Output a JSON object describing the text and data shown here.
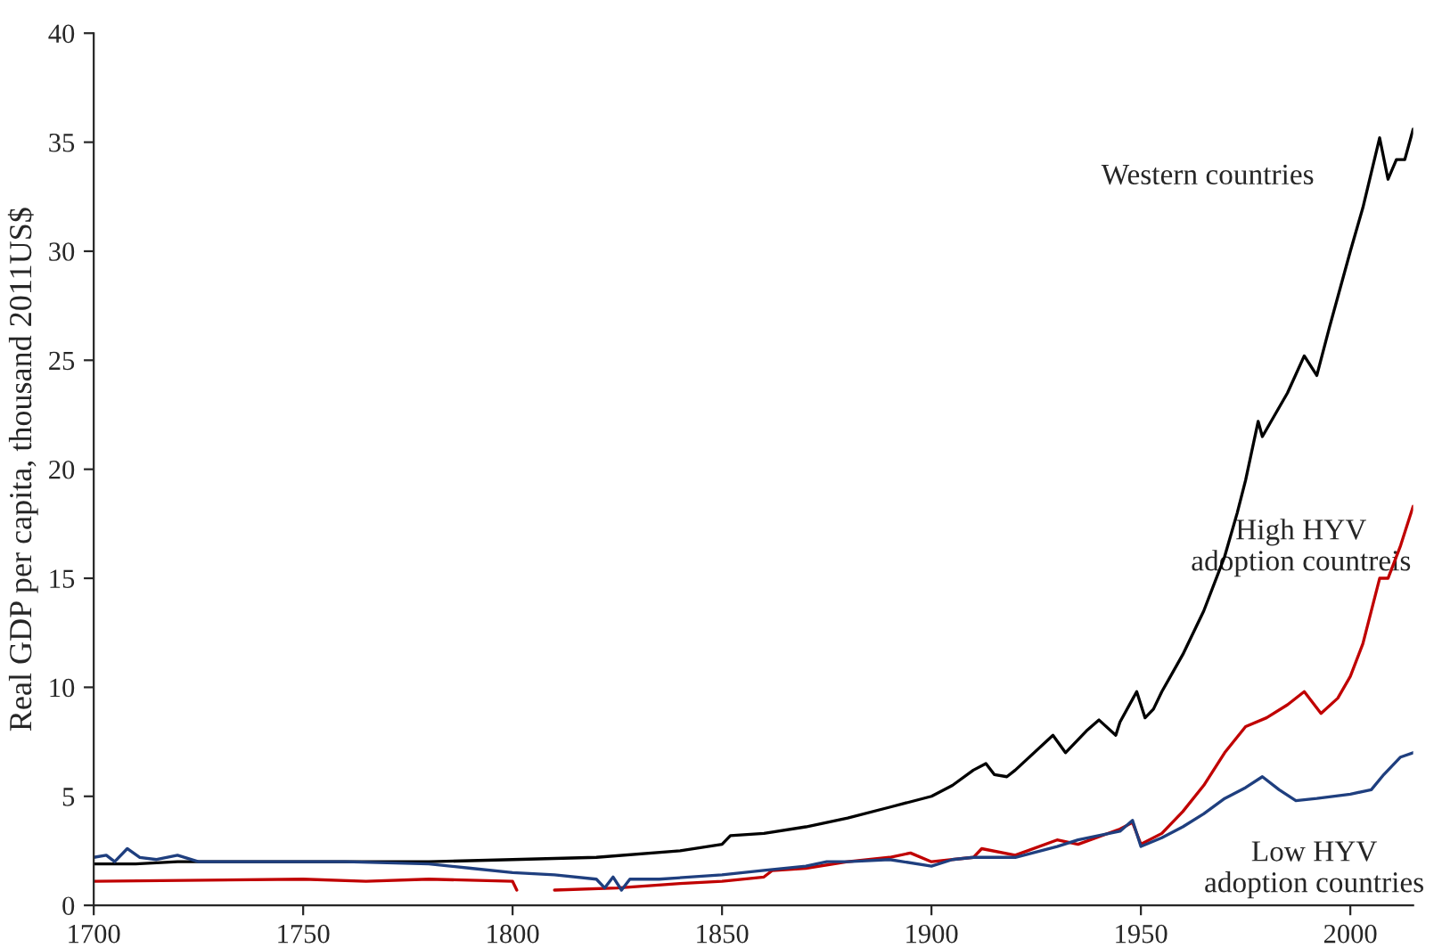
{
  "chart_data": {
    "type": "line",
    "ylabel": "Real GDP per capita, thousand 2011US$",
    "xlim": [
      1700,
      2015
    ],
    "xticks": [
      1700,
      1750,
      1800,
      1850,
      1900,
      1950,
      2000
    ],
    "ylim": [
      0,
      40
    ],
    "yticks": [
      0,
      5,
      10,
      15,
      20,
      25,
      30,
      35,
      40
    ],
    "grid": false,
    "legend": false,
    "marker": "none",
    "line_style": "solid",
    "series": [
      {
        "color": "#000000",
        "x": [
          1700,
          1710,
          1720,
          1750,
          1780,
          1800,
          1820,
          1840,
          1850,
          1852,
          1860,
          1870,
          1880,
          1890,
          1900,
          1905,
          1910,
          1913,
          1915,
          1918,
          1920,
          1929,
          1932,
          1937,
          1940,
          1944,
          1945,
          1949,
          1951,
          1953,
          1955,
          1960,
          1965,
          1970,
          1973,
          1975,
          1978,
          1979,
          1982,
          1985,
          1989,
          1992,
          1995,
          2000,
          2003,
          2007,
          2009,
          2011,
          2013,
          2015
        ],
        "values": [
          1.9,
          1.9,
          2.0,
          2.0,
          2.0,
          2.1,
          2.2,
          2.5,
          2.8,
          3.2,
          3.3,
          3.6,
          4.0,
          4.5,
          5.0,
          5.5,
          6.2,
          6.5,
          6.0,
          5.9,
          6.2,
          7.8,
          7.0,
          8.0,
          8.5,
          7.8,
          8.4,
          9.8,
          8.6,
          9.0,
          9.8,
          11.5,
          13.5,
          16.0,
          18.0,
          19.5,
          22.2,
          21.5,
          22.5,
          23.5,
          25.2,
          24.3,
          26.5,
          30.0,
          32.0,
          35.2,
          33.3,
          34.2,
          34.2,
          35.6
        ]
      },
      {
        "color": "#c00000",
        "x": [
          1700,
          1750,
          1765,
          1780,
          1800,
          1801,
          1805,
          1810,
          1825,
          1840,
          1850,
          1860,
          1862,
          1870,
          1880,
          1890,
          1895,
          1900,
          1910,
          1912,
          1920,
          1930,
          1935,
          1945,
          1948,
          1950,
          1955,
          1960,
          1965,
          1970,
          1975,
          1980,
          1985,
          1989,
          1993,
          1997,
          2000,
          2003,
          2007,
          2009,
          2012,
          2015
        ],
        "values": [
          1.1,
          1.2,
          1.1,
          1.2,
          1.1,
          0.7,
          null,
          0.7,
          0.8,
          1.0,
          1.1,
          1.3,
          1.6,
          1.7,
          2.0,
          2.2,
          2.4,
          2.0,
          2.2,
          2.6,
          2.3,
          3.0,
          2.8,
          3.5,
          3.8,
          2.8,
          3.3,
          4.3,
          5.5,
          7.0,
          8.2,
          8.6,
          9.2,
          9.8,
          8.8,
          9.5,
          10.5,
          12.0,
          15.0,
          15.0,
          16.5,
          18.3
        ]
      },
      {
        "color": "#1f3f7f",
        "x": [
          1700,
          1703,
          1705,
          1708,
          1711,
          1715,
          1720,
          1725,
          1740,
          1760,
          1780,
          1790,
          1800,
          1810,
          1820,
          1822,
          1824,
          1826,
          1828,
          1835,
          1850,
          1860,
          1870,
          1875,
          1880,
          1890,
          1900,
          1905,
          1910,
          1920,
          1930,
          1935,
          1945,
          1948,
          1950,
          1955,
          1960,
          1965,
          1970,
          1975,
          1979,
          1983,
          1987,
          1992,
          2000,
          2005,
          2008,
          2012,
          2015
        ],
        "values": [
          2.2,
          2.3,
          2.0,
          2.6,
          2.2,
          2.1,
          2.3,
          2.0,
          2.0,
          2.0,
          1.9,
          1.7,
          1.5,
          1.4,
          1.2,
          0.8,
          1.3,
          0.7,
          1.2,
          1.2,
          1.4,
          1.6,
          1.8,
          2.0,
          2.0,
          2.1,
          1.8,
          2.1,
          2.2,
          2.2,
          2.7,
          3.0,
          3.4,
          3.9,
          2.7,
          3.1,
          3.6,
          4.2,
          4.9,
          5.4,
          5.9,
          5.3,
          4.8,
          4.9,
          5.1,
          5.3,
          6.0,
          6.8,
          7.0
        ]
      }
    ],
    "annotations": [
      "Western countries",
      "High HYV\nadoption countreis",
      "Low HYV\nadoption countries"
    ]
  }
}
